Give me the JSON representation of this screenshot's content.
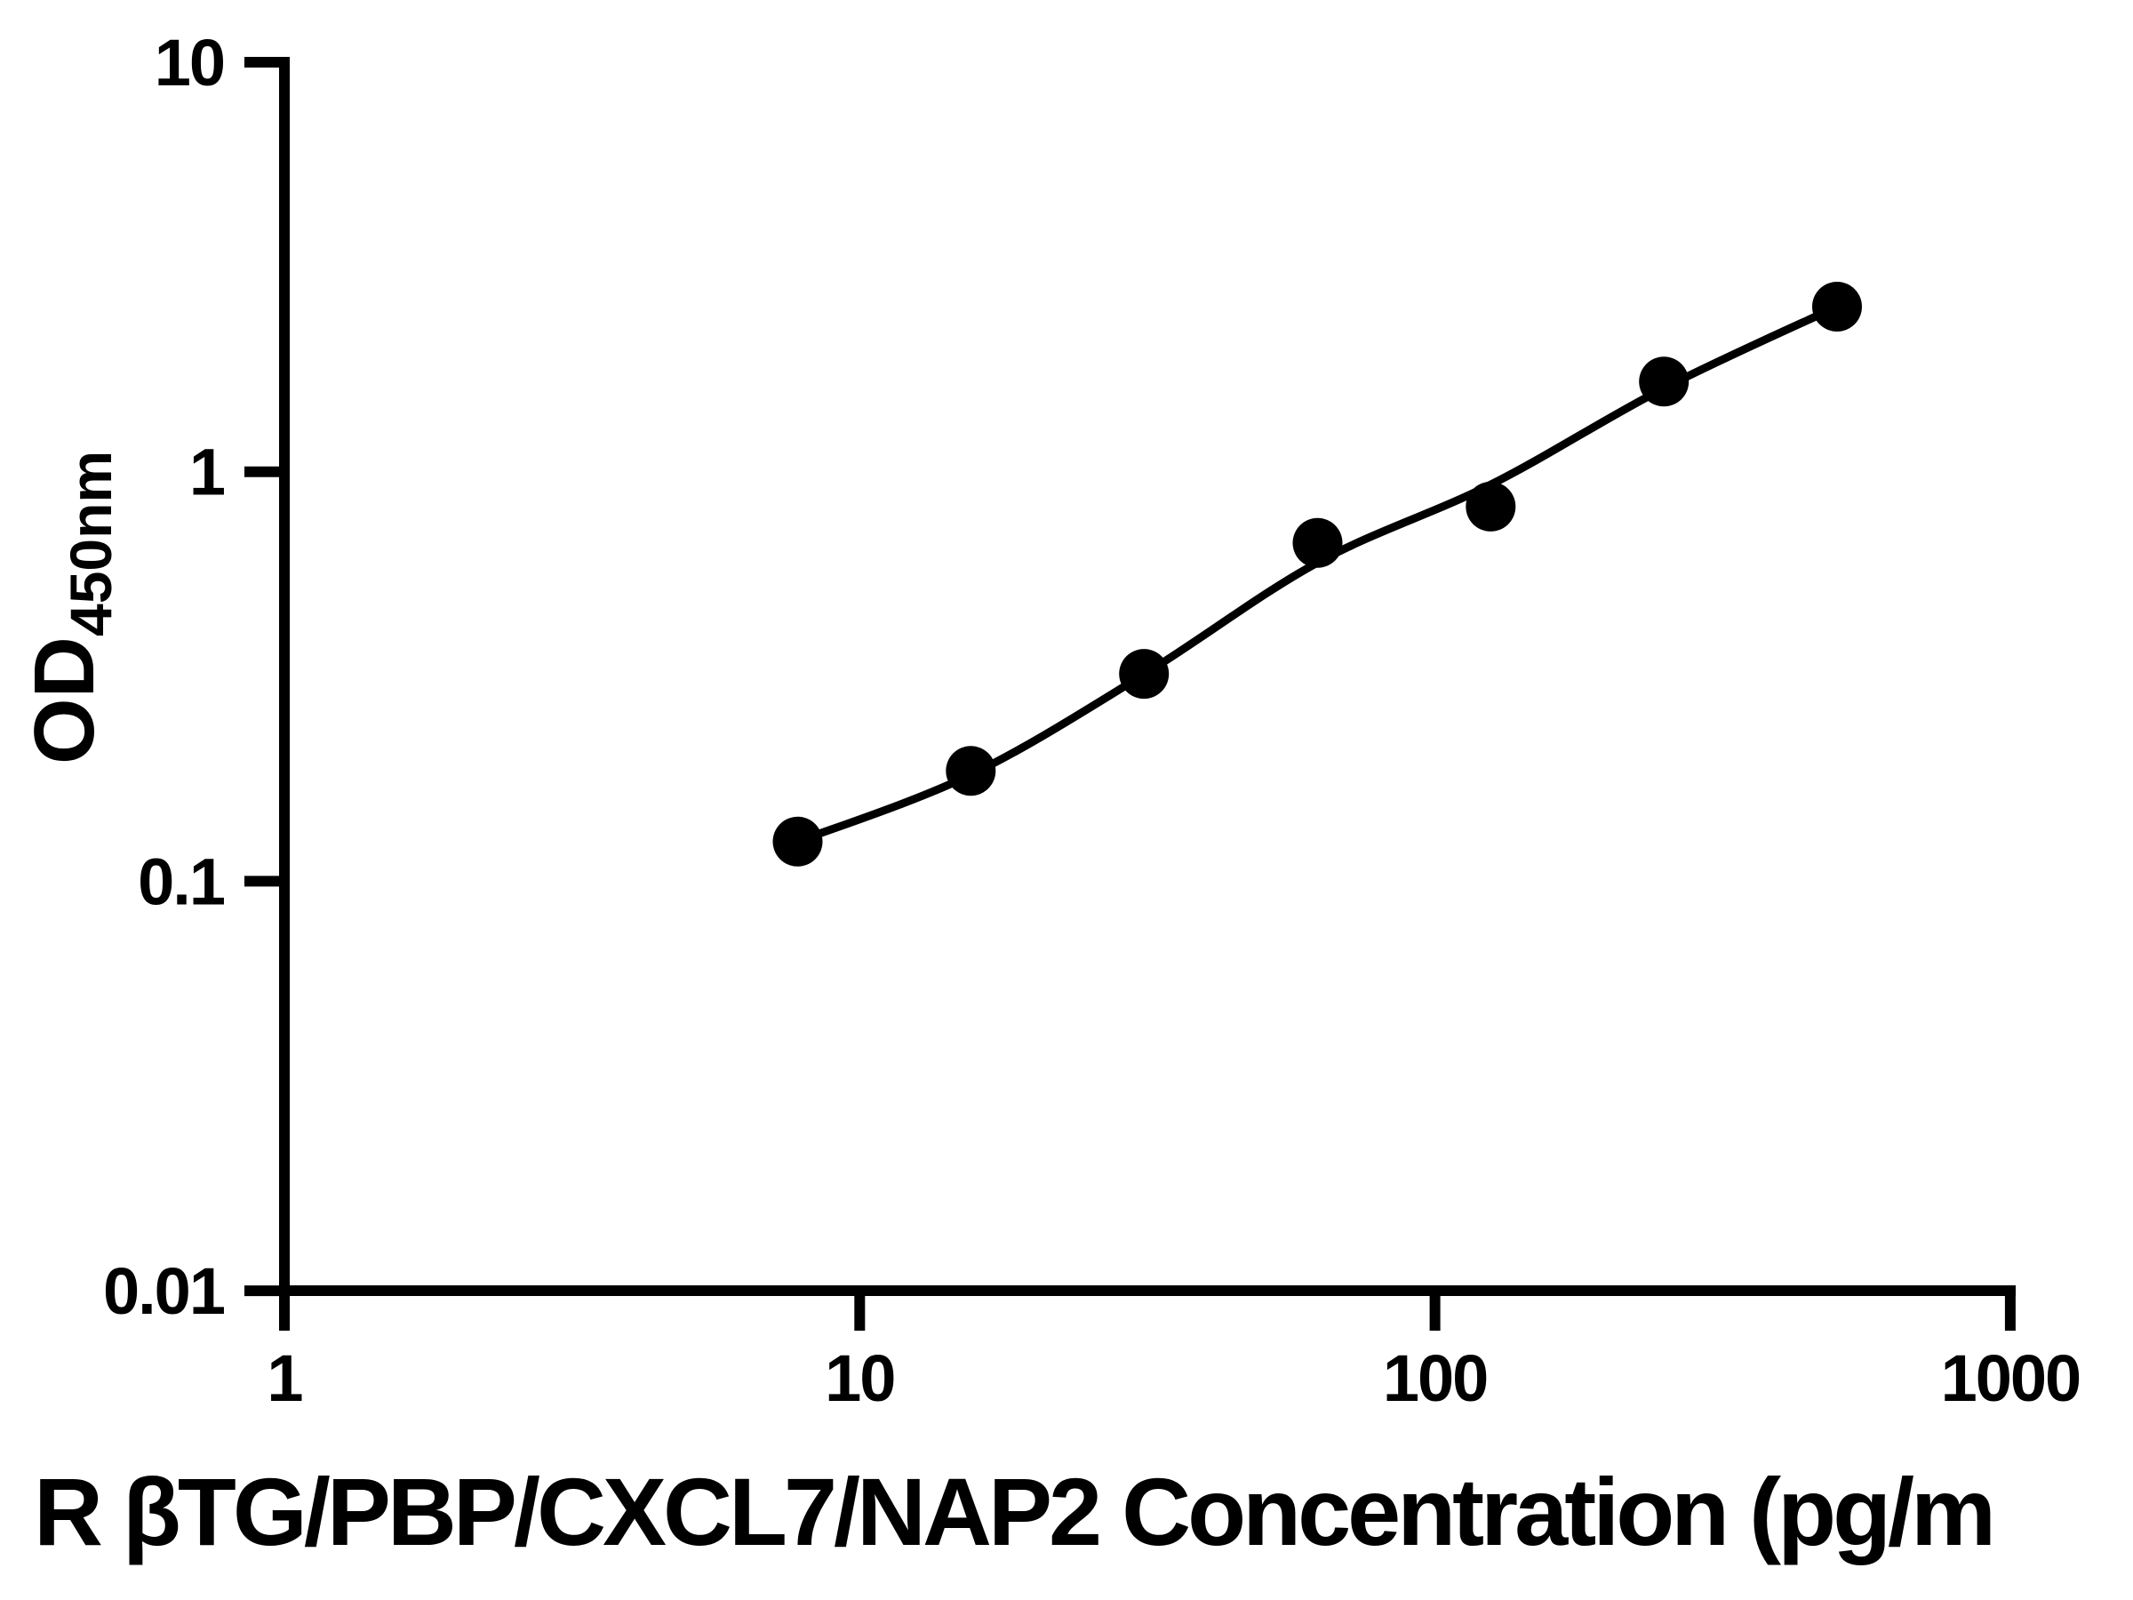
{
  "figure": {
    "background_color": "#ffffff",
    "ink_color": "#000000"
  },
  "y_axis": {
    "label_main": "OD",
    "label_sub": "450nm",
    "scale": "log",
    "range": [
      0.01,
      10
    ],
    "tick_labels": [
      "10",
      "1",
      "0.1",
      "0.01"
    ],
    "tick_values": [
      10,
      1,
      0.1,
      0.01
    ]
  },
  "x_axis": {
    "title_visible": "R βTG/PBP/CXCL7/NAP2 Concentration (pg/m",
    "scale": "log",
    "range": [
      1,
      1000
    ],
    "tick_labels": [
      "1",
      "10",
      "100",
      "1000"
    ],
    "tick_values": [
      1,
      10,
      100,
      1000
    ]
  },
  "chart_data": {
    "type": "scatter",
    "title": "R βTG/PBP/CXCL7/NAP2 Concentration (pg/m",
    "xlabel": "R βTG/PBP/CXCL7/NAP2 Concentration (pg/m",
    "ylabel": "OD450nm",
    "x": [
      7.8,
      15.6,
      31.2,
      62.5,
      125,
      250,
      500
    ],
    "y": [
      0.125,
      0.186,
      0.321,
      0.67,
      0.822,
      1.66,
      2.53
    ],
    "fit_line": [
      [
        7.8,
        0.125
      ],
      [
        15.6,
        0.182
      ],
      [
        31.2,
        0.32
      ],
      [
        62.5,
        0.6
      ],
      [
        125,
        0.93
      ],
      [
        250,
        1.6
      ],
      [
        500,
        2.53
      ]
    ],
    "xlim": [
      1,
      1000
    ],
    "ylim": [
      0.01,
      10
    ],
    "xscale": "log",
    "yscale": "log",
    "grid": false,
    "legend": false,
    "marker_color": "#000000",
    "line_color": "#000000"
  }
}
